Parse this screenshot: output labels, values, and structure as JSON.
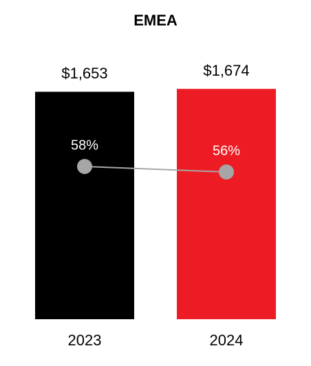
{
  "chart_data": {
    "type": "bar",
    "title": "EMEA",
    "categories": [
      "2023",
      "2024"
    ],
    "series": [
      {
        "type": "bar",
        "colors": [
          "#000000",
          "#ed1c24"
        ],
        "values": [
          1653,
          1674
        ],
        "value_labels": [
          "$1,653",
          "$1,674"
        ]
      },
      {
        "type": "line",
        "axis": "y2",
        "color": "#a6a6a6",
        "values": [
          58,
          56
        ],
        "value_labels": [
          "58%",
          "56%"
        ]
      }
    ],
    "ylim": [
      0,
      1700
    ],
    "y2lim": [
      2.5,
      87.5
    ]
  }
}
